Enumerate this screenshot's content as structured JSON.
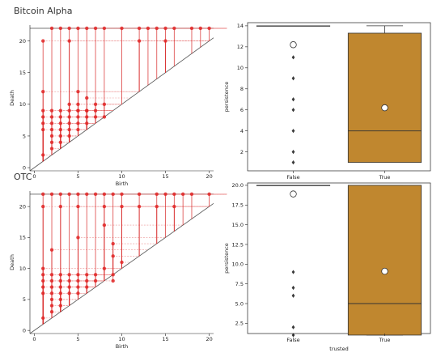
{
  "chart_data": [
    {
      "type": "scatter",
      "title": "Bitcoin Alpha",
      "xlabel": "Birth",
      "ylabel": "Death",
      "xlim": [
        -0.5,
        20.5
      ],
      "ylim": [
        -0.5,
        22.5
      ],
      "xticks": [
        "0",
        "5",
        "10",
        "15",
        "20"
      ],
      "yticks": [
        "0",
        "5",
        "10",
        "15",
        "20"
      ],
      "infinite_death_line": 22,
      "series": [
        {
          "values": [
            [
              2,
              22
            ],
            [
              3,
              22
            ],
            [
              4,
              22
            ],
            [
              5,
              22
            ],
            [
              6,
              22
            ],
            [
              7,
              22
            ],
            [
              8,
              22
            ],
            [
              10,
              22
            ],
            [
              12,
              22
            ],
            [
              13,
              22
            ],
            [
              14,
              22
            ],
            [
              15,
              22
            ],
            [
              16,
              22
            ],
            [
              18,
              22
            ],
            [
              19,
              22
            ],
            [
              20,
              22
            ],
            [
              1,
              20
            ],
            [
              4,
              20
            ],
            [
              12,
              20
            ],
            [
              15,
              20
            ],
            [
              1,
              12
            ],
            [
              5,
              12
            ],
            [
              6,
              11
            ],
            [
              4,
              10
            ],
            [
              5,
              10
            ],
            [
              7,
              10
            ],
            [
              8,
              10
            ],
            [
              5,
              9
            ],
            [
              6,
              9
            ],
            [
              1,
              9
            ],
            [
              2,
              9
            ],
            [
              3,
              9
            ],
            [
              4,
              9
            ],
            [
              5,
              9
            ],
            [
              6,
              9
            ],
            [
              7,
              9
            ],
            [
              1,
              8
            ],
            [
              2,
              8
            ],
            [
              3,
              8
            ],
            [
              4,
              8
            ],
            [
              5,
              8
            ],
            [
              6,
              8
            ],
            [
              7,
              8
            ],
            [
              8,
              8
            ],
            [
              1,
              7
            ],
            [
              2,
              7
            ],
            [
              3,
              7
            ],
            [
              4,
              7
            ],
            [
              5,
              7
            ],
            [
              6,
              7
            ],
            [
              1,
              6
            ],
            [
              2,
              6
            ],
            [
              3,
              6
            ],
            [
              4,
              6
            ],
            [
              5,
              6
            ],
            [
              2,
              5
            ],
            [
              3,
              5
            ],
            [
              4,
              5
            ],
            [
              2,
              4
            ],
            [
              3,
              4
            ],
            [
              2,
              3
            ],
            [
              1,
              2
            ]
          ]
        }
      ]
    },
    {
      "type": "box",
      "xlabel": "",
      "ylabel": "persistence",
      "ylim": [
        0.2,
        14.3
      ],
      "yticks": [
        "2",
        "4",
        "6",
        "8",
        "10",
        "12",
        "14"
      ],
      "categories": [
        "False",
        "True"
      ],
      "boxes": [
        {
          "category": "False",
          "q1": 14,
          "median": 14,
          "q3": 14,
          "whislo": 14,
          "whishi": 14,
          "mean": 12.2,
          "color": "#ffffff"
        },
        {
          "category": "True",
          "q1": 1,
          "median": 4,
          "q3": 13.3,
          "whislo": 1,
          "whishi": 14,
          "mean": 6.2,
          "color": "#c0872f"
        }
      ],
      "outliers": [
        {
          "category": "False",
          "values": [
            1,
            2,
            4,
            6,
            7,
            9,
            11
          ]
        }
      ]
    },
    {
      "type": "scatter",
      "title": "OTC",
      "xlabel": "Birth",
      "ylabel": "Death",
      "xlim": [
        -0.5,
        20.5
      ],
      "ylim": [
        -0.5,
        22.5
      ],
      "xticks": [
        "0",
        "5",
        "10",
        "15",
        "20"
      ],
      "yticks": [
        "0",
        "5",
        "10",
        "15",
        "20"
      ],
      "infinite_death_line": 22,
      "series": [
        {
          "values": [
            [
              1,
              22
            ],
            [
              2,
              22
            ],
            [
              3,
              22
            ],
            [
              4,
              22
            ],
            [
              5,
              22
            ],
            [
              6,
              22
            ],
            [
              7,
              22
            ],
            [
              8,
              22
            ],
            [
              9,
              22
            ],
            [
              10,
              22
            ],
            [
              12,
              22
            ],
            [
              14,
              22
            ],
            [
              15,
              22
            ],
            [
              16,
              22
            ],
            [
              17,
              22
            ],
            [
              18,
              22
            ],
            [
              20,
              22
            ],
            [
              1,
              20
            ],
            [
              3,
              20
            ],
            [
              5,
              20
            ],
            [
              8,
              20
            ],
            [
              10,
              20
            ],
            [
              12,
              20
            ],
            [
              14,
              20
            ],
            [
              16,
              20
            ],
            [
              8,
              17
            ],
            [
              5,
              15
            ],
            [
              9,
              14
            ],
            [
              2,
              13
            ],
            [
              9,
              12
            ],
            [
              10,
              11
            ],
            [
              8,
              10
            ],
            [
              9,
              9
            ],
            [
              9,
              8
            ],
            [
              1,
              10
            ],
            [
              1,
              9
            ],
            [
              2,
              9
            ],
            [
              3,
              9
            ],
            [
              4,
              9
            ],
            [
              5,
              9
            ],
            [
              6,
              9
            ],
            [
              7,
              9
            ],
            [
              1,
              8
            ],
            [
              2,
              8
            ],
            [
              3,
              8
            ],
            [
              4,
              8
            ],
            [
              5,
              8
            ],
            [
              6,
              8
            ],
            [
              7,
              8
            ],
            [
              1,
              7
            ],
            [
              2,
              7
            ],
            [
              3,
              7
            ],
            [
              4,
              7
            ],
            [
              5,
              7
            ],
            [
              6,
              7
            ],
            [
              1,
              6
            ],
            [
              2,
              6
            ],
            [
              3,
              6
            ],
            [
              4,
              6
            ],
            [
              5,
              6
            ],
            [
              2,
              5
            ],
            [
              3,
              5
            ],
            [
              2,
              4
            ],
            [
              3,
              4
            ],
            [
              2,
              3
            ],
            [
              1,
              2
            ]
          ]
        }
      ]
    },
    {
      "type": "box",
      "xlabel": "trusted",
      "ylabel": "persistence",
      "ylim": [
        1.2,
        20.3
      ],
      "yticks": [
        "2.5",
        "5.0",
        "7.5",
        "10.0",
        "12.5",
        "15.0",
        "17.5",
        "20.0"
      ],
      "categories": [
        "False",
        "True"
      ],
      "boxes": [
        {
          "category": "False",
          "q1": 20,
          "median": 20,
          "q3": 20,
          "whislo": 20,
          "whishi": 20,
          "mean": 18.9,
          "color": "#ffffff"
        },
        {
          "category": "True",
          "q1": 1,
          "median": 5,
          "q3": 20,
          "whislo": 1,
          "whishi": 20,
          "mean": 9.1,
          "color": "#c0872f"
        }
      ],
      "outliers": [
        {
          "category": "False",
          "values": [
            1,
            2,
            6,
            7,
            9
          ]
        }
      ]
    }
  ]
}
